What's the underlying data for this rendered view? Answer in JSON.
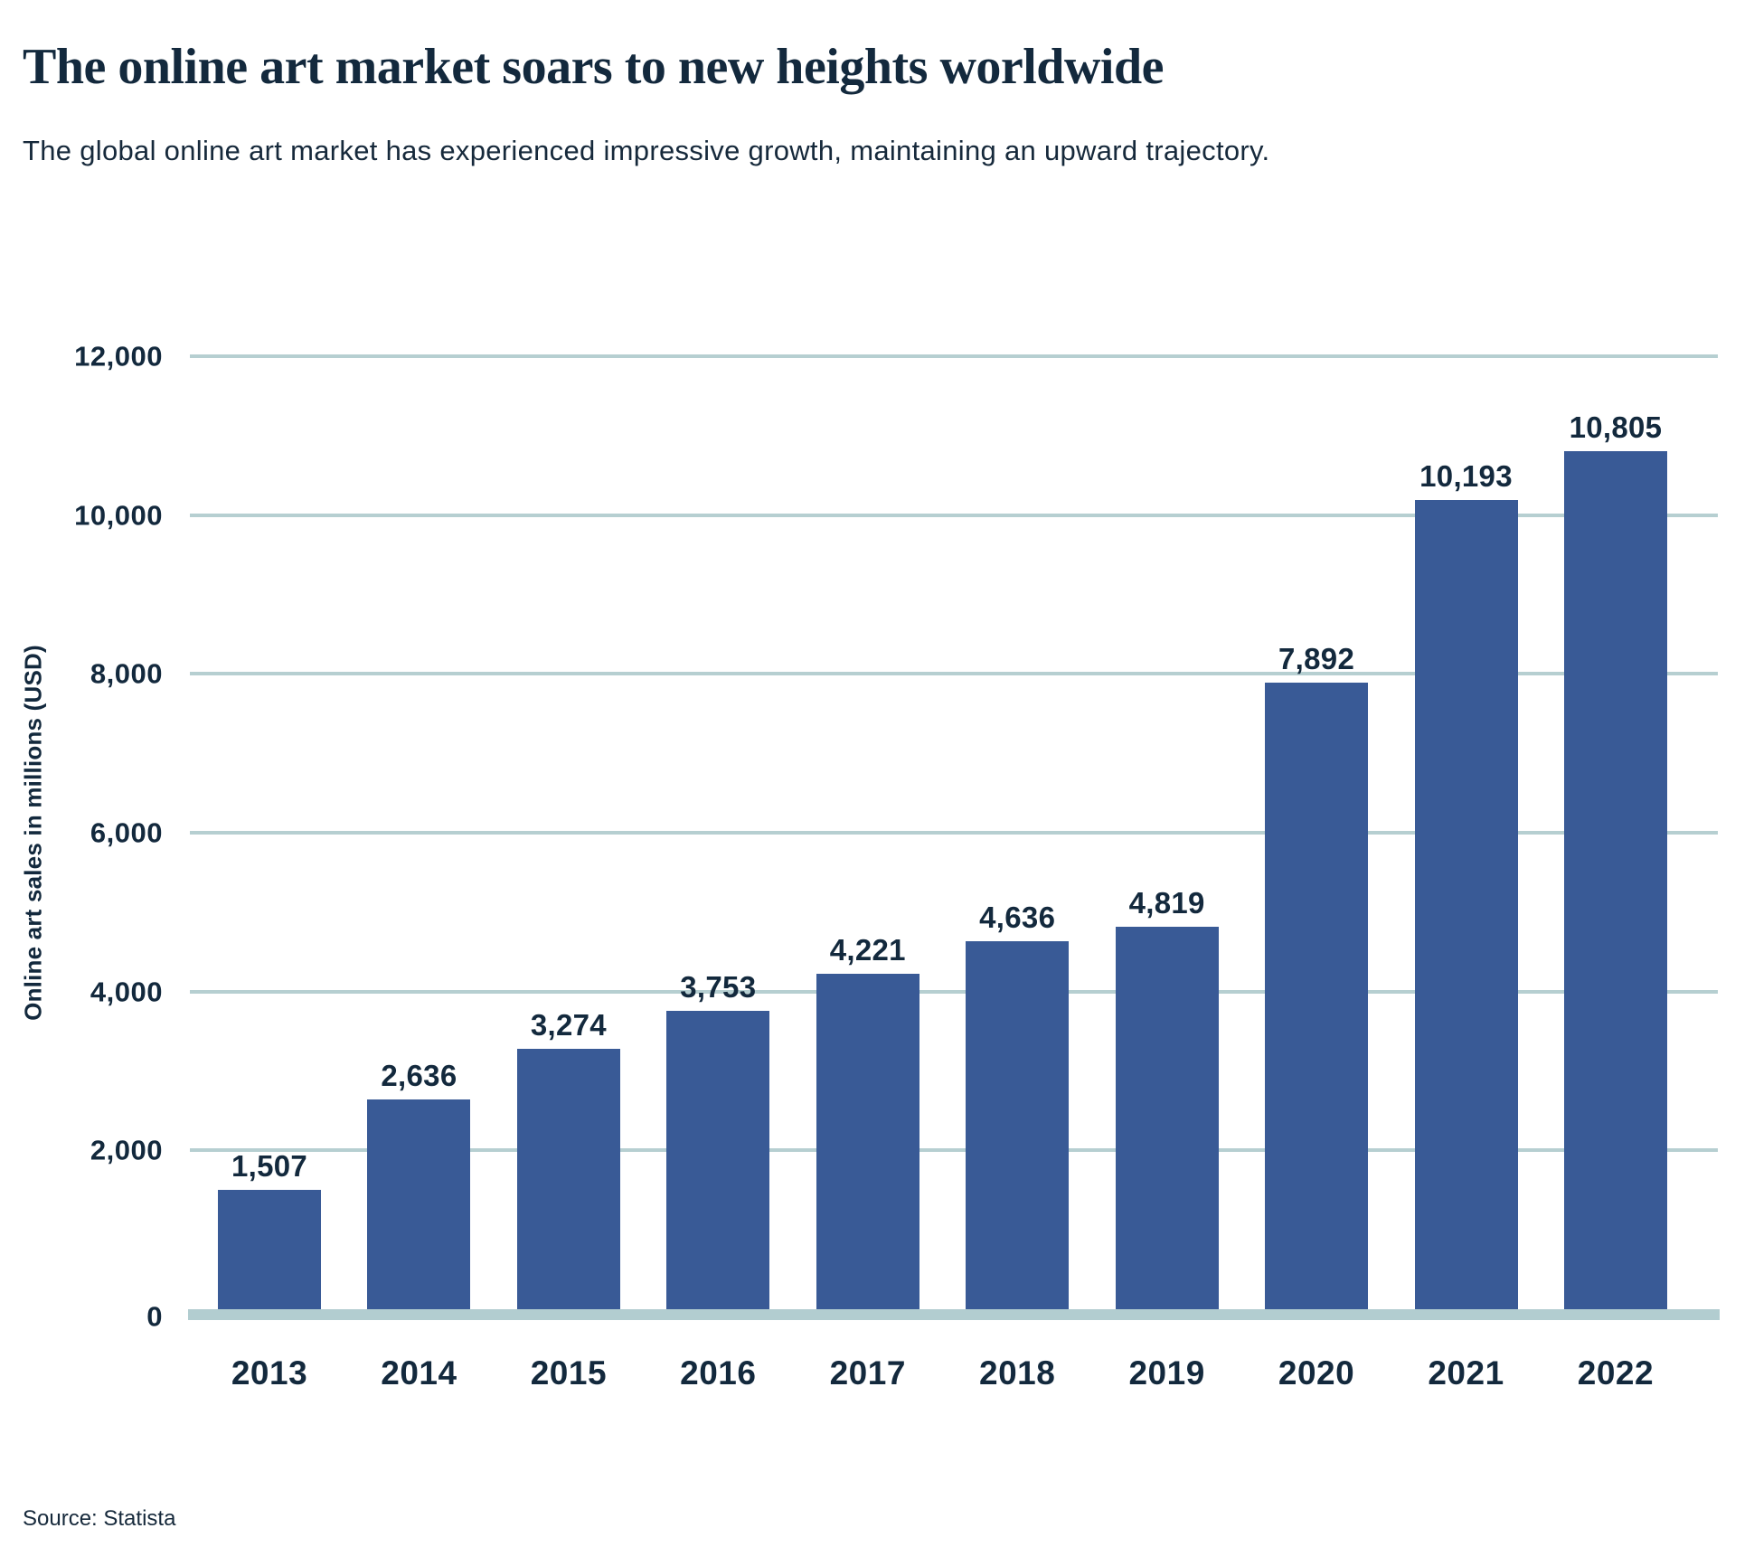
{
  "chart_data": {
    "type": "bar",
    "title": "The online art market soars to new heights worldwide",
    "subtitle": "The global online art market has experienced impressive growth, maintaining an upward trajectory.",
    "ylabel": "Online art sales in millions (USD)",
    "xlabel": "",
    "source": "Source: Statista",
    "categories": [
      "2013",
      "2014",
      "2015",
      "2016",
      "2017",
      "2018",
      "2019",
      "2020",
      "2021",
      "2022"
    ],
    "values": [
      1507,
      2636,
      3274,
      3753,
      4221,
      4636,
      4819,
      7892,
      10193,
      10805
    ],
    "value_labels": [
      "1,507",
      "2,636",
      "3,274",
      "3,753",
      "4,221",
      "4,636",
      "4,819",
      "7,892",
      "10,193",
      "10,805"
    ],
    "ylim": [
      0,
      12000
    ],
    "yticks": [
      {
        "value": 12000,
        "label": "12,000"
      },
      {
        "value": 10000,
        "label": "10,000"
      },
      {
        "value": 8000,
        "label": "8,000"
      },
      {
        "value": 6000,
        "label": "6,000"
      },
      {
        "value": 4000,
        "label": "4,000"
      },
      {
        "value": 2000,
        "label": "2,000"
      },
      {
        "value": 0,
        "label": "0"
      }
    ],
    "grid": "horizontal",
    "legend": "none",
    "colors": {
      "bar": "#395A96",
      "gridline": "#B6CFD1",
      "baseline": "#B2CDD0",
      "text": "#13293D"
    }
  }
}
